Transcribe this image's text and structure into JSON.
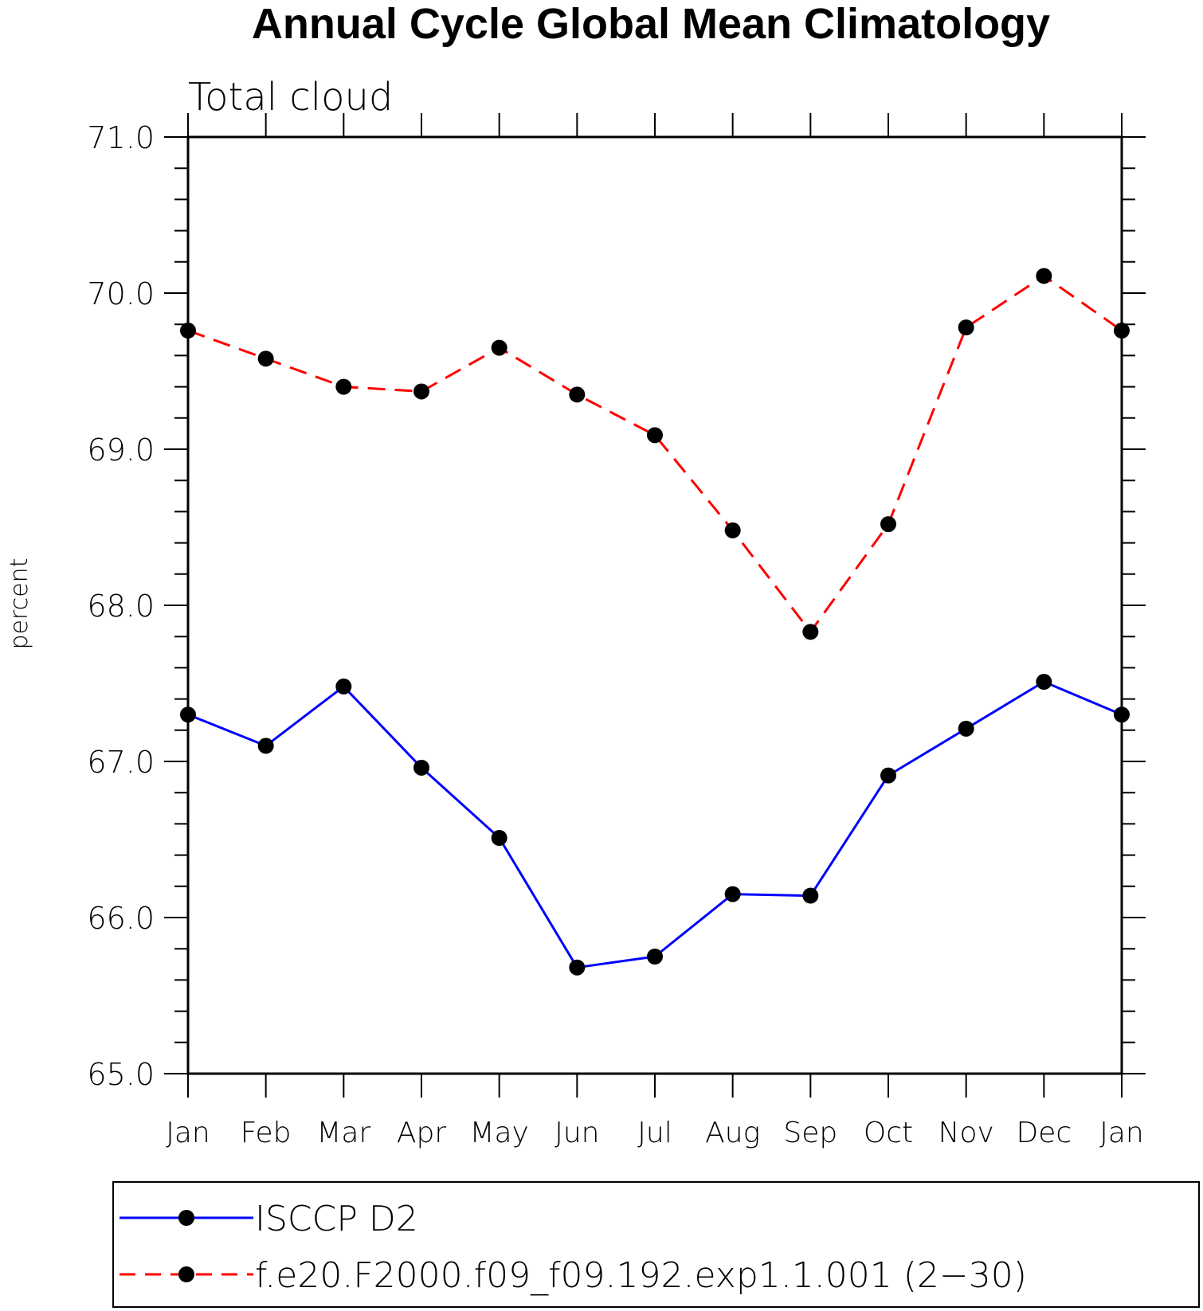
{
  "chart_data": {
    "type": "line",
    "title": "Annual Cycle Global Mean Climatology",
    "subtitle": "Total cloud",
    "xlabel": "",
    "ylabel": "percent",
    "categories": [
      "Jan",
      "Feb",
      "Mar",
      "Apr",
      "May",
      "Jun",
      "Jul",
      "Aug",
      "Sep",
      "Oct",
      "Nov",
      "Dec",
      "Jan"
    ],
    "ylim": [
      65.0,
      71.0
    ],
    "yticks": [
      "65.0",
      "66.0",
      "67.0",
      "68.0",
      "69.0",
      "70.0",
      "71.0"
    ],
    "grid": false,
    "legend_position": "bottom",
    "series": [
      {
        "name": "ISCCP D2",
        "color": "#0000ff",
        "line_style": "solid",
        "marker": "filled-circle",
        "values": [
          67.3,
          67.1,
          67.48,
          66.96,
          66.51,
          65.68,
          65.75,
          66.15,
          66.14,
          66.91,
          67.21,
          67.51,
          67.3
        ]
      },
      {
        "name": "f.e20.F2000.f09_f09.192.exp1.1.001 (2−30)",
        "color": "#ff0000",
        "line_style": "dashed",
        "marker": "filled-circle",
        "values": [
          69.76,
          69.58,
          69.4,
          69.37,
          69.65,
          69.35,
          69.09,
          68.48,
          67.83,
          68.52,
          69.78,
          70.11,
          69.76
        ]
      }
    ]
  }
}
